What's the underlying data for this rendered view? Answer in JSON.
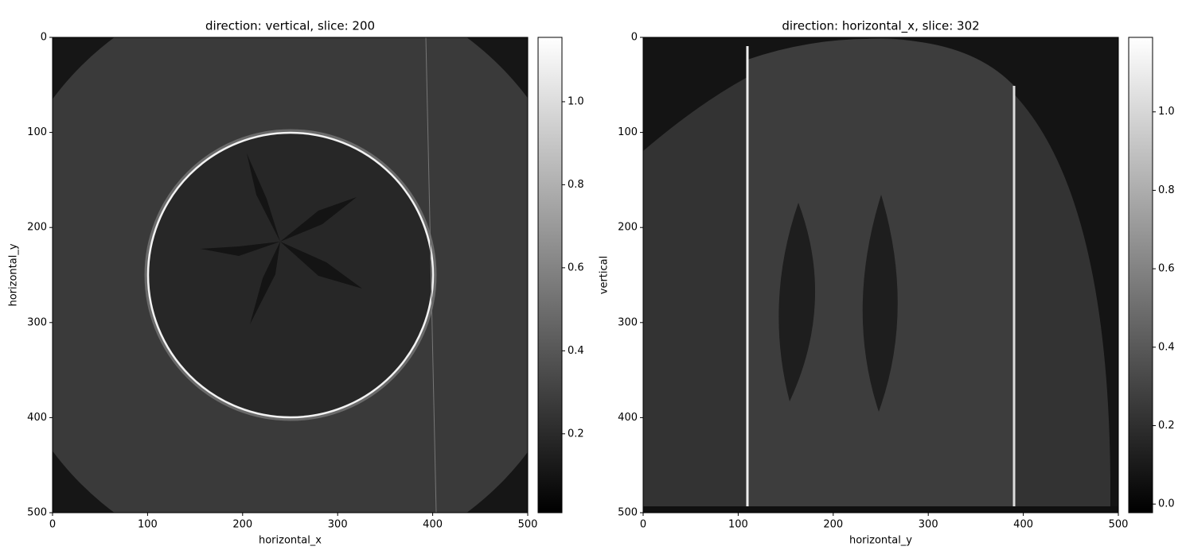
{
  "chart_data": [
    {
      "type": "image",
      "title": "direction: vertical, slice: 200",
      "xlabel": "horizontal_x",
      "ylabel": "horizontal_y",
      "xlim": [
        0,
        500
      ],
      "ylim": [
        500,
        0
      ],
      "xticks": [
        0,
        100,
        200,
        300,
        400,
        500
      ],
      "yticks": [
        0,
        100,
        200,
        300,
        400,
        500
      ],
      "colormap": "gray",
      "colorbar": {
        "lim": [
          0.01,
          1.155
        ],
        "ticks": [
          0.2,
          0.4,
          0.6,
          0.8,
          {
            "value": 1,
            "label": "1.0"
          }
        ]
      }
    },
    {
      "type": "image",
      "title": "direction: horizontal_x, slice: 302",
      "xlabel": "horizontal_y",
      "ylabel": "vertical",
      "xlim": [
        0,
        500
      ],
      "ylim": [
        500,
        0
      ],
      "xticks": [
        0,
        100,
        200,
        300,
        400,
        500
      ],
      "yticks": [
        0,
        100,
        200,
        300,
        400,
        500
      ],
      "colormap": "gray",
      "colorbar": {
        "lim": [
          -0.022,
          1.19
        ],
        "ticks": [
          {
            "value": 0,
            "label": "0.0"
          },
          0.2,
          0.4,
          0.6,
          0.8,
          {
            "value": 1,
            "label": "1.0"
          }
        ]
      }
    }
  ]
}
